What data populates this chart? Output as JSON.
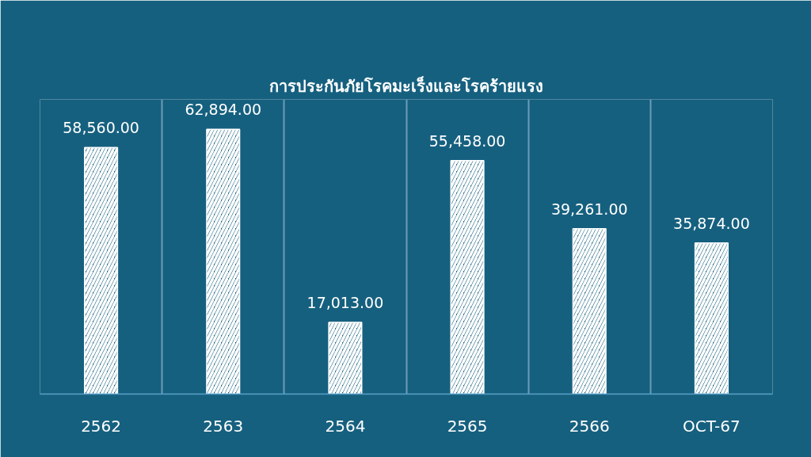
{
  "chart_data": {
    "type": "bar",
    "title": "การประกันภัยโรคมะเร็งและโรคร้ายแรง",
    "categories": [
      "2562",
      "2563",
      "2564",
      "2565",
      "2566",
      "OCT-67"
    ],
    "values": [
      58560,
      62894,
      17013,
      55458,
      39261,
      35874
    ],
    "value_labels": [
      "58,560.00",
      "62,894.00",
      "17,013.00",
      "55,458.00",
      "39,261.00",
      "35,874.00"
    ],
    "color": "#ffffff",
    "grid": "x"
  }
}
